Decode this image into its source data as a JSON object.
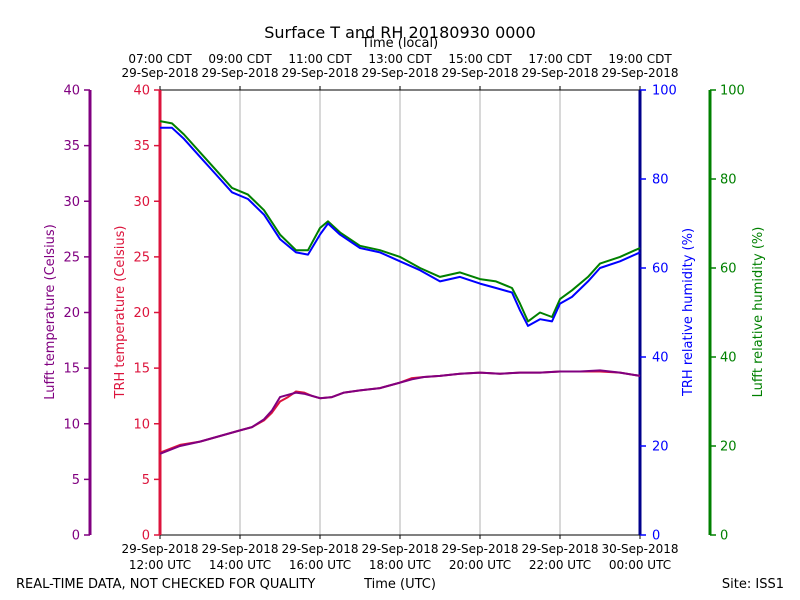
{
  "chart_data": {
    "type": "line",
    "title": "Surface T and RH 20180930 0000",
    "top_axis_title": "Time (local)",
    "bottom_axis_title": "Time (UTC)",
    "footer_left": "REAL-TIME DATA, NOT CHECKED FOR QUALITY",
    "footer_right": "Site: ISS1",
    "x_range_utc_hours": [
      12,
      24
    ],
    "bottom_ticks": [
      {
        "x": 12,
        "line1": "29-Sep-2018",
        "line2": "12:00 UTC"
      },
      {
        "x": 14,
        "line1": "29-Sep-2018",
        "line2": "14:00 UTC"
      },
      {
        "x": 16,
        "line1": "29-Sep-2018",
        "line2": "16:00 UTC"
      },
      {
        "x": 18,
        "line1": "29-Sep-2018",
        "line2": "18:00 UTC"
      },
      {
        "x": 20,
        "line1": "29-Sep-2018",
        "line2": "20:00 UTC"
      },
      {
        "x": 22,
        "line1": "29-Sep-2018",
        "line2": "22:00 UTC"
      },
      {
        "x": 24,
        "line1": "30-Sep-2018",
        "line2": "00:00 UTC"
      }
    ],
    "top_ticks": [
      {
        "x": 12,
        "line1": "07:00 CDT",
        "line2": "29-Sep-2018"
      },
      {
        "x": 14,
        "line1": "09:00 CDT",
        "line2": "29-Sep-2018"
      },
      {
        "x": 16,
        "line1": "11:00 CDT",
        "line2": "29-Sep-2018"
      },
      {
        "x": 18,
        "line1": "13:00 CDT",
        "line2": "29-Sep-2018"
      },
      {
        "x": 20,
        "line1": "15:00 CDT",
        "line2": "29-Sep-2018"
      },
      {
        "x": 22,
        "line1": "17:00 CDT",
        "line2": "29-Sep-2018"
      },
      {
        "x": 24,
        "line1": "19:00 CDT",
        "line2": "29-Sep-2018"
      }
    ],
    "axes": {
      "lufft_temp": {
        "label": "Lufft temperature (Celsius)",
        "range": [
          0,
          40
        ],
        "ticks": [
          "0",
          "5",
          "10",
          "15",
          "20",
          "25",
          "30",
          "35",
          "40"
        ],
        "color": "#800080"
      },
      "trh_temp": {
        "label": "TRH temperature (Celsius)",
        "range": [
          0,
          40
        ],
        "ticks": [
          "0",
          "5",
          "10",
          "15",
          "20",
          "25",
          "30",
          "35",
          "40"
        ],
        "color": "#dc143c"
      },
      "trh_rh": {
        "label": "TRH relative humidity (%)",
        "range": [
          0,
          100
        ],
        "ticks": [
          "0",
          "20",
          "40",
          "60",
          "80",
          "100"
        ],
        "color": "#0000ff"
      },
      "lufft_rh": {
        "label": "Lufft relative humidity (%)",
        "range": [
          0,
          100
        ],
        "ticks": [
          "0",
          "20",
          "40",
          "60",
          "80",
          "100"
        ],
        "color": "#008000"
      }
    },
    "series": [
      {
        "name": "TRH temperature",
        "axis": "trh_temp",
        "color": "#dc143c",
        "x": [
          12.0,
          12.5,
          13.0,
          13.5,
          14.0,
          14.3,
          14.6,
          14.8,
          15.0,
          15.2,
          15.4,
          15.6,
          15.8,
          16.0,
          16.3,
          16.6,
          17.0,
          17.5,
          18.0,
          18.3,
          18.6,
          19.0,
          19.5,
          20.0,
          20.5,
          21.0,
          21.5,
          22.0,
          22.5,
          23.0,
          23.5,
          24.0
        ],
        "values": [
          7.4,
          8.1,
          8.4,
          8.9,
          9.4,
          9.7,
          10.3,
          11.0,
          12.0,
          12.4,
          12.9,
          12.8,
          12.5,
          12.3,
          12.4,
          12.8,
          13.0,
          13.2,
          13.7,
          14.1,
          14.2,
          14.3,
          14.5,
          14.6,
          14.5,
          14.6,
          14.6,
          14.7,
          14.7,
          14.7,
          14.6,
          14.3
        ]
      },
      {
        "name": "Lufft temperature",
        "axis": "lufft_temp",
        "color": "#800080",
        "x": [
          12.0,
          12.5,
          13.0,
          13.5,
          14.0,
          14.3,
          14.6,
          14.8,
          15.0,
          15.2,
          15.4,
          15.6,
          15.8,
          16.0,
          16.3,
          16.6,
          17.0,
          17.5,
          18.0,
          18.3,
          18.6,
          19.0,
          19.5,
          20.0,
          20.5,
          21.0,
          21.5,
          22.0,
          22.5,
          23.0,
          23.5,
          24.0
        ],
        "values": [
          7.3,
          8.0,
          8.4,
          8.9,
          9.4,
          9.7,
          10.4,
          11.2,
          12.4,
          12.6,
          12.8,
          12.7,
          12.5,
          12.3,
          12.4,
          12.8,
          13.0,
          13.2,
          13.7,
          14.0,
          14.2,
          14.3,
          14.5,
          14.6,
          14.5,
          14.6,
          14.6,
          14.7,
          14.7,
          14.8,
          14.6,
          14.3
        ]
      },
      {
        "name": "Lufft relative humidity",
        "axis": "lufft_rh",
        "color": "#008000",
        "x": [
          12.0,
          12.3,
          12.6,
          13.0,
          13.4,
          13.8,
          14.2,
          14.6,
          15.0,
          15.4,
          15.7,
          16.0,
          16.2,
          16.5,
          17.0,
          17.5,
          18.0,
          18.5,
          19.0,
          19.5,
          20.0,
          20.4,
          20.8,
          21.0,
          21.2,
          21.5,
          21.8,
          22.0,
          22.3,
          22.7,
          23.0,
          23.5,
          24.0
        ],
        "values": [
          93.0,
          92.5,
          90.0,
          86.0,
          82.0,
          78.0,
          76.5,
          73.0,
          67.5,
          64.0,
          64.0,
          69.0,
          70.5,
          68.0,
          65.0,
          64.0,
          62.5,
          60.0,
          58.0,
          59.0,
          57.5,
          57.0,
          55.5,
          52.0,
          48.0,
          50.0,
          49.0,
          53.0,
          55.0,
          58.0,
          61.0,
          62.5,
          64.5
        ]
      },
      {
        "name": "TRH relative humidity",
        "axis": "trh_rh",
        "color": "#0000ff",
        "x": [
          12.0,
          12.3,
          12.6,
          13.0,
          13.4,
          13.8,
          14.2,
          14.6,
          15.0,
          15.4,
          15.7,
          16.0,
          16.2,
          16.5,
          17.0,
          17.5,
          18.0,
          18.5,
          19.0,
          19.5,
          20.0,
          20.4,
          20.8,
          21.0,
          21.2,
          21.5,
          21.8,
          22.0,
          22.3,
          22.7,
          23.0,
          23.5,
          24.0
        ],
        "values": [
          91.5,
          91.5,
          89.0,
          85.0,
          81.0,
          77.0,
          75.5,
          72.0,
          66.5,
          63.5,
          63.0,
          67.5,
          70.0,
          67.5,
          64.5,
          63.5,
          61.5,
          59.5,
          57.0,
          58.0,
          56.5,
          55.5,
          54.5,
          50.5,
          47.0,
          48.5,
          48.0,
          52.0,
          53.5,
          57.0,
          60.0,
          61.5,
          63.5
        ]
      }
    ]
  }
}
